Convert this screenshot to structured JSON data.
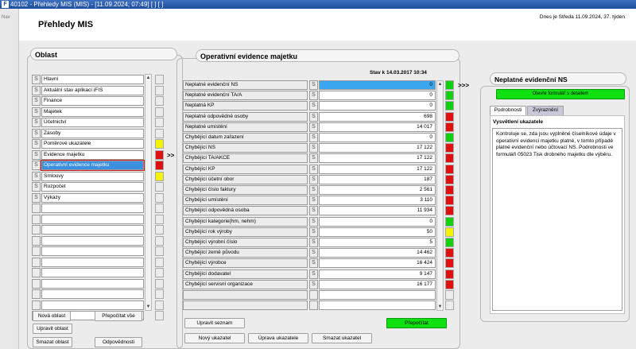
{
  "window": {
    "title": "40102 - Přehledy MIS (MIS) - [11.09.2024; 07:49]  [ ]  [ ]",
    "icon": "app-icon"
  },
  "nav": {
    "label": "Nav"
  },
  "header": {
    "title": "Přehledy MIS",
    "date": "Dnes je Středa  11.09.2024, 37. týden"
  },
  "oblast": {
    "title": "Oblast",
    "s_label": "S",
    "items": [
      {
        "name": "Hlavní",
        "indicator": "none"
      },
      {
        "name": "Aktuální stav aplikací iFIS",
        "indicator": "none"
      },
      {
        "name": "Finance",
        "indicator": "none"
      },
      {
        "name": "Majetek",
        "indicator": "none"
      },
      {
        "name": "Účetnictví",
        "indicator": "none"
      },
      {
        "name": "Zásoby",
        "indicator": "none"
      },
      {
        "name": "Poměrové ukazatele",
        "indicator": "yellow"
      },
      {
        "name": "Evidence majetku",
        "indicator": "red"
      },
      {
        "name": "Operativní evidence majetku",
        "indicator": "red",
        "selected": true
      },
      {
        "name": "Smlouvy",
        "indicator": "yellow"
      },
      {
        "name": "Rozpočet",
        "indicator": "none"
      },
      {
        "name": "Výkazy",
        "indicator": "none"
      }
    ],
    "buttons": {
      "new": "Nová oblast",
      "recalc_all": "Přepočítat vše",
      "edit": "Upravit oblast",
      "delete": "Smazat oblast",
      "responsibility": "Odpovědnosti"
    }
  },
  "arrows_left": ">>",
  "arrows_right": ">>>",
  "evidence": {
    "title": "Operativní evidence majetku",
    "stav": "Stav k 14.03.2017 10:34",
    "s_label": "S",
    "rows": [
      {
        "label": "Neplatné evidenční NS",
        "value": "0",
        "indicator": "green",
        "selected": true
      },
      {
        "label": "Neplatné evidenční TA/A",
        "value": "0",
        "indicator": "green"
      },
      {
        "label": "Neplatná KP",
        "value": "0",
        "indicator": "green"
      },
      {
        "label": "Neplatné odpovědné osoby",
        "value": "698",
        "indicator": "red"
      },
      {
        "label": "Neplatné umístění",
        "value": "14 017",
        "indicator": "red"
      },
      {
        "label": "Chybějící datum zařazení",
        "value": "0",
        "indicator": "green"
      },
      {
        "label": "Chybějící NS",
        "value": "17 122",
        "indicator": "red"
      },
      {
        "label": "Chybějící TA/AKCE",
        "value": "17 122",
        "indicator": "red"
      },
      {
        "label": "Chybějící KP",
        "value": "17 122",
        "indicator": "red"
      },
      {
        "label": "Chybějící účetní obor",
        "value": "187",
        "indicator": "red"
      },
      {
        "label": "Chybějící číslo faktury",
        "value": "2 561",
        "indicator": "red"
      },
      {
        "label": "Chybějící umístění",
        "value": "3 110",
        "indicator": "red"
      },
      {
        "label": "Chybějící odpovědná osoba",
        "value": "11 934",
        "indicator": "red"
      },
      {
        "label": "Chybějící kategorie(hm, nehm)",
        "value": "0",
        "indicator": "green"
      },
      {
        "label": "Chybějící rok výroby",
        "value": "50",
        "indicator": "yellow"
      },
      {
        "label": "Chybějící výrobní číslo",
        "value": "5",
        "indicator": "green"
      },
      {
        "label": "Chybějící země původu",
        "value": "14 462",
        "indicator": "red"
      },
      {
        "label": "Chybějící výrobce",
        "value": "16 424",
        "indicator": "red"
      },
      {
        "label": "Chybějící dodavatel",
        "value": "9 147",
        "indicator": "red"
      },
      {
        "label": "Chybějící servisní organizace",
        "value": "16 177",
        "indicator": "red"
      }
    ],
    "buttons": {
      "edit_list": "Upravit seznam",
      "recalc": "Přepočítat",
      "new_indicator": "Nový ukazatel",
      "edit_indicator": "Úprava ukazatele",
      "delete_indicator": "Smazat ukazatel"
    }
  },
  "detail": {
    "title": "Neplatné evidenční NS",
    "open_button": "Otevře formulář s detailem",
    "tabs": [
      "Podrobnosti",
      "Zvýraznění"
    ],
    "section": "Vysvětlení ukazatele",
    "description": "Kontroluje se, zda jsou vyplněné číselníkové údaje v operativní evidenci majetku platné, v tomto případě platné evidenční nebo účtovací NS. Podrobnosti ve formuláři 05023 Tisk drobného majetku dle výběru."
  }
}
